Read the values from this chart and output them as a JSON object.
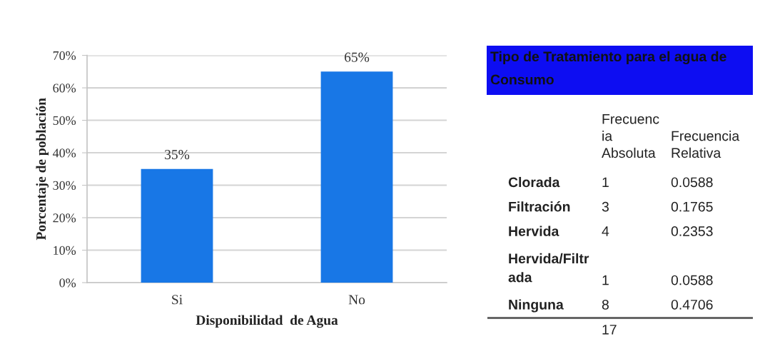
{
  "chart_data": [
    {
      "type": "bar",
      "categories": [
        "Si",
        "No"
      ],
      "values": [
        35,
        65
      ],
      "color": "#1877e6",
      "value_labels": [
        "35%",
        "65%"
      ],
      "xlabel": "Disponibilidad  de Agua",
      "ylabel": "Porcentaje de población",
      "ylim": [
        0,
        70
      ],
      "yticks": [
        {
          "value": 0,
          "label": "0%"
        },
        {
          "value": 10,
          "label": "10%"
        },
        {
          "value": 20,
          "label": "20%"
        },
        {
          "value": 30,
          "label": "30%"
        },
        {
          "value": 40,
          "label": "40%"
        },
        {
          "value": 50,
          "label": "50%"
        },
        {
          "value": 60,
          "label": "60%"
        },
        {
          "value": 70,
          "label": "70%"
        }
      ],
      "grid": "y"
    },
    {
      "type": "other",
      "title": "Tipo de Tratamiento para el agua de Consumo",
      "categories": [
        "Clorada",
        "Filtración",
        "Hervida",
        "Hervida/Filtr\nada",
        "Ninguna"
      ],
      "series": [
        {
          "name": "Frecuenc\nia\nAbsoluta",
          "values": [
            1,
            3,
            4,
            1,
            8
          ]
        },
        {
          "name": "Frecuencia\nRelativa",
          "values": [
            0.0588,
            0.1765,
            0.2353,
            0.0588,
            0.4706
          ]
        }
      ],
      "data_labels": true,
      "totals": [
        "17"
      ]
    }
  ]
}
